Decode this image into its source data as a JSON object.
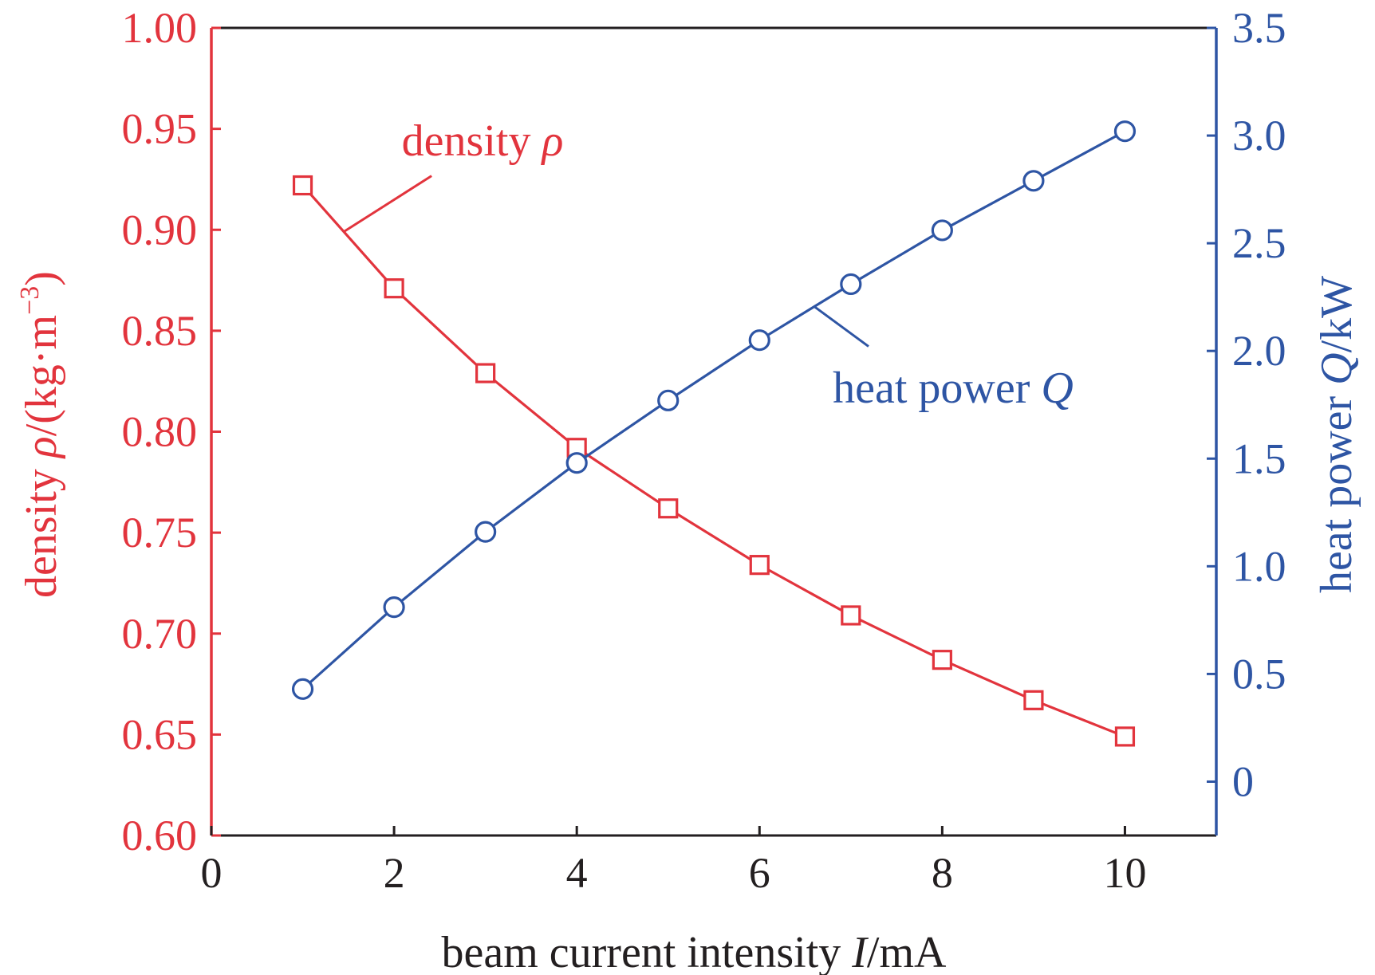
{
  "chart_data": {
    "type": "line",
    "x": [
      1,
      2,
      3,
      4,
      5,
      6,
      7,
      8,
      9,
      10
    ],
    "xlim": [
      0,
      11
    ],
    "xticks": [
      0,
      2,
      4,
      6,
      8,
      10
    ],
    "xtick_labels": [
      "0",
      "2",
      "4",
      "6",
      "8",
      "10"
    ],
    "xlabel": {
      "prefix": "beam current intensity ",
      "symbol": "I",
      "suffix": "/mA"
    },
    "y_left": {
      "ylim": [
        0.6,
        1.0
      ],
      "ticks": [
        0.6,
        0.65,
        0.7,
        0.75,
        0.8,
        0.85,
        0.9,
        0.95,
        1.0
      ],
      "tick_labels": [
        "0.60",
        "0.65",
        "0.70",
        "0.75",
        "0.80",
        "0.85",
        "0.90",
        "0.95",
        "1.00"
      ],
      "label": {
        "prefix": "density ",
        "symbol": "ρ",
        "suffix": "/(kg·m",
        "sup": "−3",
        "close": ")"
      },
      "color": "#e2343d"
    },
    "y_right": {
      "ylim": [
        -0.25,
        3.5
      ],
      "ticks": [
        0,
        0.5,
        1.0,
        1.5,
        2.0,
        2.5,
        3.0,
        3.5
      ],
      "tick_labels": [
        "0",
        "0.5",
        "1.0",
        "1.5",
        "2.0",
        "2.5",
        "3.0",
        "3.5"
      ],
      "label": {
        "prefix": "heat power ",
        "symbol": "Q",
        "suffix": "/kW"
      },
      "color": "#2e55a4"
    },
    "series": [
      {
        "name": "density ρ",
        "axis": "left",
        "marker": "square",
        "color": "#e2343d",
        "values": [
          0.922,
          0.871,
          0.829,
          0.792,
          0.762,
          0.734,
          0.709,
          0.687,
          0.667,
          0.649
        ]
      },
      {
        "name": "heat power Q",
        "axis": "right",
        "marker": "circle",
        "color": "#2e55a4",
        "values": [
          0.43,
          0.81,
          1.16,
          1.48,
          1.77,
          2.05,
          2.31,
          2.56,
          2.79,
          3.02
        ]
      }
    ],
    "annotations": [
      {
        "series": 0,
        "prefix": "density ",
        "symbol": "ρ",
        "anchor_x": 1.45
      },
      {
        "series": 1,
        "prefix": "heat power ",
        "symbol": "Q",
        "anchor_x": 6.6
      }
    ]
  }
}
